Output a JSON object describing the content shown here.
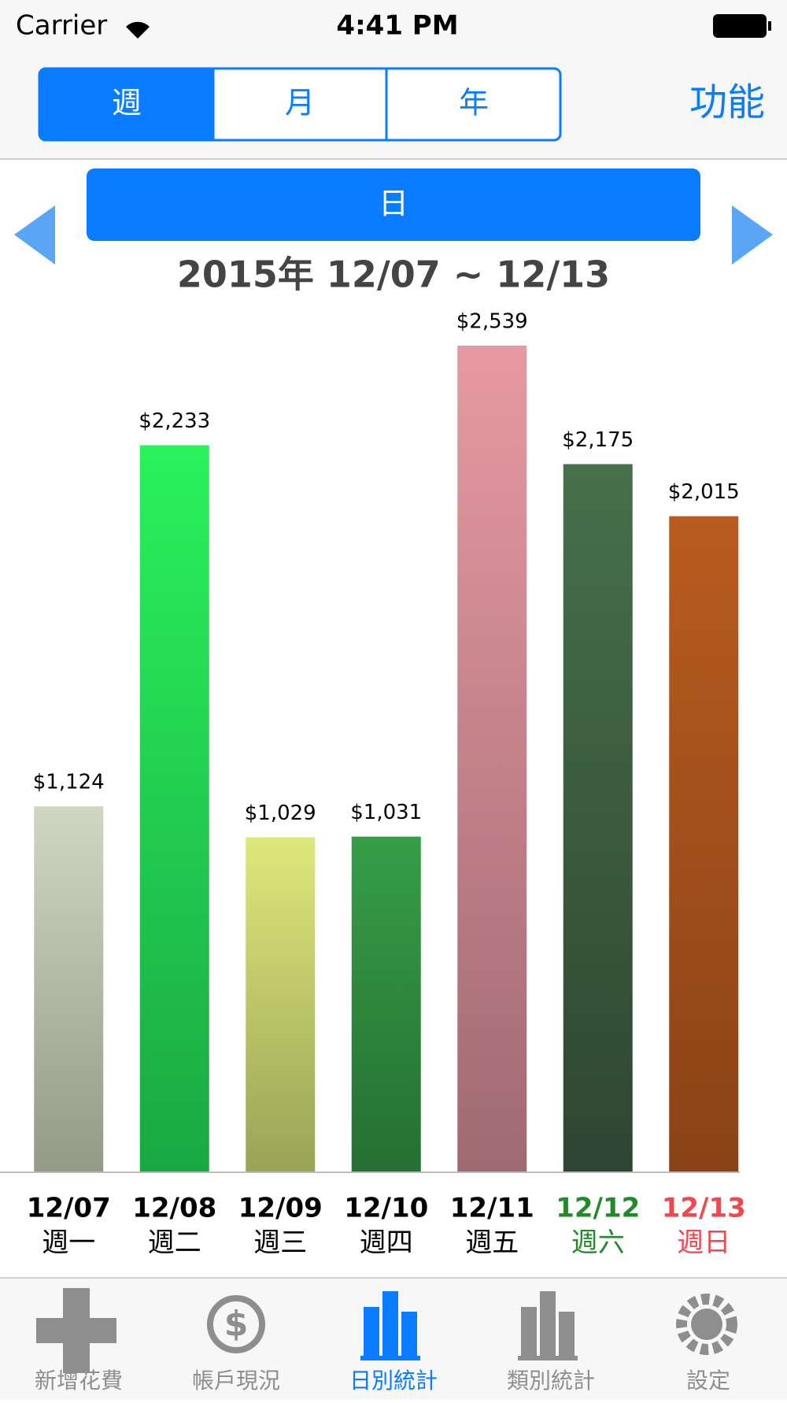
{
  "status_bar": {
    "carrier": "Carrier",
    "time": "4:41 PM"
  },
  "segments": [
    "週",
    "月",
    "年"
  ],
  "function_button": "功能",
  "mode_button": "日",
  "chart_data": {
    "type": "bar",
    "title": "2015年 12/07 ~ 12/13",
    "categories": [
      "12/07",
      "12/08",
      "12/09",
      "12/10",
      "12/11",
      "12/12",
      "12/13"
    ],
    "weekdays": [
      "週一",
      "週二",
      "週三",
      "週四",
      "週五",
      "週六",
      "週日"
    ],
    "label_colors": [
      "#000000",
      "#000000",
      "#000000",
      "#000000",
      "#000000",
      "#238a2a",
      "#f0484f"
    ],
    "values": [
      1124,
      2233,
      1029,
      1031,
      2539,
      2175,
      2015
    ],
    "value_labels": [
      "$1,124",
      "$2,233",
      "$1,029",
      "$1,031",
      "$2,539",
      "$2,175",
      "$2,015"
    ],
    "colors": [
      "#d0d6c4",
      "#2af25c",
      "#dde87b",
      "#369e47",
      "#e799a3",
      "#47704a",
      "#b85c20"
    ],
    "colors_bottom": [
      "#959a88",
      "#1aa843",
      "#9aa356",
      "#256f32",
      "#a06a72",
      "#2e4632",
      "#8a4216"
    ],
    "ylim": [
      0,
      2800
    ]
  },
  "tab_bar": [
    "新增花費",
    "帳戶現況",
    "日別統計",
    "類別統計",
    "設定"
  ]
}
